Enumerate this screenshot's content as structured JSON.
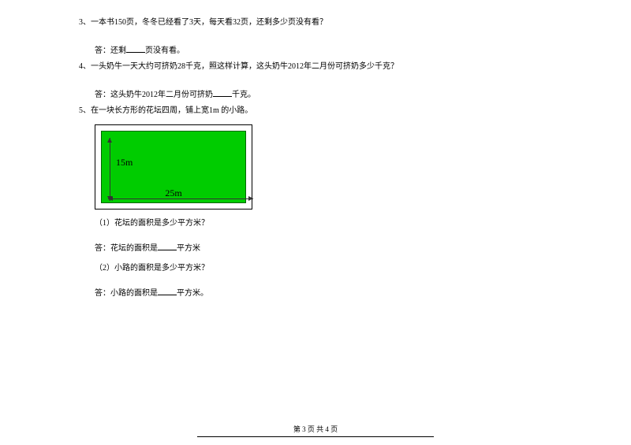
{
  "q3": {
    "num": "3、",
    "text": "一本书150页，冬冬已经看了3天，每天看32页，还剩多少页没有看？",
    "answer_prefix": "答：还剩",
    "answer_suffix": "页没有看。"
  },
  "q4": {
    "num": "4、",
    "text": "一头奶牛一天大约可挤奶28千克，照这样计算，这头奶牛2012年二月份可挤奶多少千克？",
    "answer_prefix": "答：这头奶牛2012年二月份可挤奶",
    "answer_suffix": "千克。"
  },
  "q5": {
    "num": "5、",
    "text": "在一块长方形的花坛四周，铺上宽1m 的小路。",
    "diagram": {
      "width_label": "25m",
      "height_label": "15m",
      "inner_color": "#00cc00",
      "outer_color": "#ffffff",
      "border_color": "#000000"
    },
    "sub1": {
      "label": "（1）花坛的面积是多少平方米？",
      "answer_prefix": "答：花坛的面积是",
      "answer_suffix": "平方米"
    },
    "sub2": {
      "label": "（2）小路的面积是多少平方米？",
      "answer_prefix": "答：小路的面积是",
      "answer_suffix": "平方米。"
    }
  },
  "footer": {
    "text": "第 3 页 共 4 页"
  }
}
